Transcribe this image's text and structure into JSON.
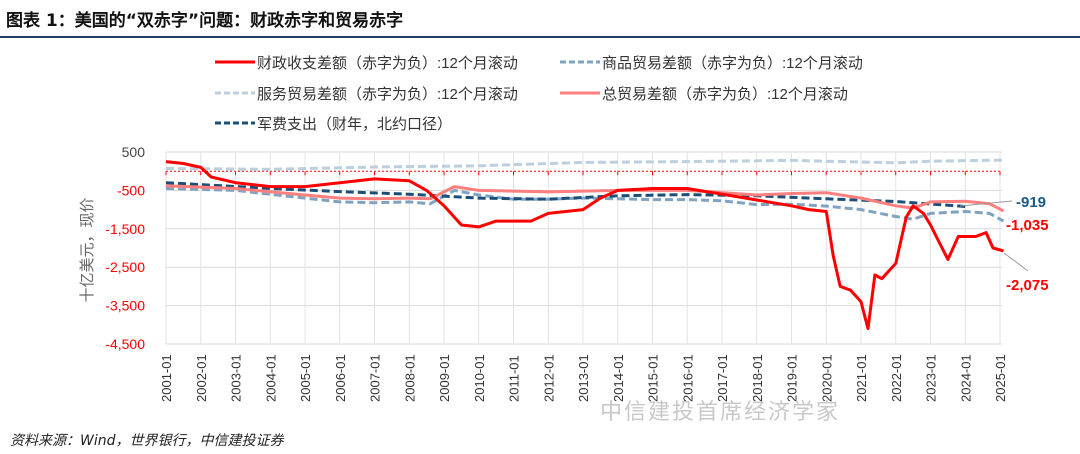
{
  "header": {
    "title": "图表 1：美国的“双赤字”问题：财政赤字和贸易赤字"
  },
  "footer": {
    "source": "资料来源：Wind，世界银行，中信建投证券"
  },
  "watermark": "中信建投首席经济学家",
  "chart_data": {
    "type": "line",
    "title": "图表 1：美国的“双赤字”问题：财政赤字和贸易赤字",
    "ylabel": "十亿美元，现价",
    "ylim": [
      -4500,
      500
    ],
    "yticks": [
      "500",
      "-500",
      "-1,500",
      "-2,500",
      "-3,500",
      "-4,500"
    ],
    "ytick_values": [
      500,
      -500,
      -1500,
      -2500,
      -3500,
      -4500
    ],
    "xticks": [
      "2001-01",
      "2002-01",
      "2003-01",
      "2004-01",
      "2005-01",
      "2006-01",
      "2007-01",
      "2008-01",
      "2009-01",
      "2010-01",
      "2011-01",
      "2012-01",
      "2013-01",
      "2014-01",
      "2015-01",
      "2016-01",
      "2017-01",
      "2018-01",
      "2019-01",
      "2020-01",
      "2021-01",
      "2022-01",
      "2023-01",
      "2024-01",
      "2025-01"
    ],
    "xlim": [
      2001,
      2025.1
    ],
    "grid": true,
    "legend_position": "top",
    "annotations": [
      {
        "text": "-919",
        "value": -919,
        "color": "#1a5a8a"
      },
      {
        "text": "-1,035",
        "value": -1035,
        "color": "#ff0000"
      },
      {
        "text": "-2,075",
        "value": -2075,
        "color": "#ff0000"
      }
    ],
    "series": [
      {
        "name": "财政收支差额（赤字为负）:12个月滚动",
        "color": "#ff0000",
        "style": "solid",
        "x": [
          2001,
          2001.5,
          2002,
          2002.3,
          2003,
          2004,
          2005,
          2006,
          2007,
          2008,
          2008.5,
          2009,
          2009.5,
          2010,
          2010.5,
          2011,
          2011.5,
          2012,
          2013,
          2013.5,
          2014,
          2015,
          2016,
          2017,
          2018,
          2019,
          2019.5,
          2020,
          2020.2,
          2020.4,
          2020.7,
          2021,
          2021.2,
          2021.4,
          2021.6,
          2022,
          2022.3,
          2022.5,
          2022.8,
          2023,
          2023.5,
          2023.8,
          2024.3,
          2024.6,
          2024.8,
          2025.1
        ],
        "values": [
          250,
          200,
          100,
          -150,
          -300,
          -400,
          -400,
          -300,
          -200,
          -250,
          -500,
          -900,
          -1400,
          -1450,
          -1300,
          -1300,
          -1300,
          -1100,
          -1000,
          -700,
          -500,
          -450,
          -450,
          -600,
          -750,
          -900,
          -1000,
          -1050,
          -2200,
          -3000,
          -3100,
          -3400,
          -4100,
          -2700,
          -2800,
          -2400,
          -1200,
          -900,
          -1100,
          -1400,
          -2300,
          -1700,
          -1700,
          -1600,
          -2000,
          -2075
        ]
      },
      {
        "name": "商品贸易差额（赤字为负）:12个月滚动",
        "color": "#7fa3c0",
        "style": "dashed",
        "x": [
          2001,
          2003,
          2005,
          2006,
          2007,
          2008,
          2008.6,
          2009.3,
          2010,
          2011,
          2012,
          2013,
          2014,
          2015,
          2016,
          2017,
          2018,
          2019,
          2020,
          2021,
          2022,
          2022.5,
          2023,
          2024,
          2024.7,
          2025.1
        ],
        "values": [
          -450,
          -500,
          -700,
          -800,
          -820,
          -800,
          -850,
          -500,
          -620,
          -730,
          -730,
          -700,
          -720,
          -740,
          -740,
          -770,
          -870,
          -860,
          -910,
          -1000,
          -1180,
          -1250,
          -1100,
          -1050,
          -1100,
          -1300
        ]
      },
      {
        "name": "服务贸易差额（赤字为负）:12个月滚动",
        "color": "#bccfdf",
        "style": "dashed",
        "x": [
          2001,
          2004,
          2007,
          2010,
          2013,
          2016,
          2019,
          2020.5,
          2022,
          2023,
          2025.1
        ],
        "values": [
          70,
          50,
          110,
          140,
          230,
          250,
          280,
          250,
          220,
          260,
          290
        ]
      },
      {
        "name": "总贸易差额（赤字为负）:12个月滚动",
        "color": "#ff7f7f",
        "style": "solid",
        "x": [
          2001,
          2003,
          2005,
          2006,
          2007,
          2008,
          2008.6,
          2009.3,
          2010,
          2012,
          2014,
          2016,
          2018,
          2019,
          2020,
          2021,
          2022,
          2022.5,
          2023,
          2024,
          2024.7,
          2025.1
        ],
        "values": [
          -380,
          -450,
          -620,
          -700,
          -720,
          -700,
          -720,
          -400,
          -500,
          -540,
          -500,
          -500,
          -620,
          -580,
          -560,
          -700,
          -900,
          -960,
          -800,
          -780,
          -850,
          -1035
        ]
      },
      {
        "name": "军费支出（财年，北约口径）",
        "color": "#1a4f7a",
        "style": "dashed",
        "x": [
          2001,
          2002,
          2004,
          2006,
          2008,
          2010,
          2012,
          2014,
          2016,
          2018,
          2020,
          2022,
          2024
        ],
        "values": [
          -300,
          -350,
          -450,
          -530,
          -600,
          -700,
          -730,
          -640,
          -610,
          -640,
          -720,
          -790,
          -919
        ]
      }
    ]
  }
}
